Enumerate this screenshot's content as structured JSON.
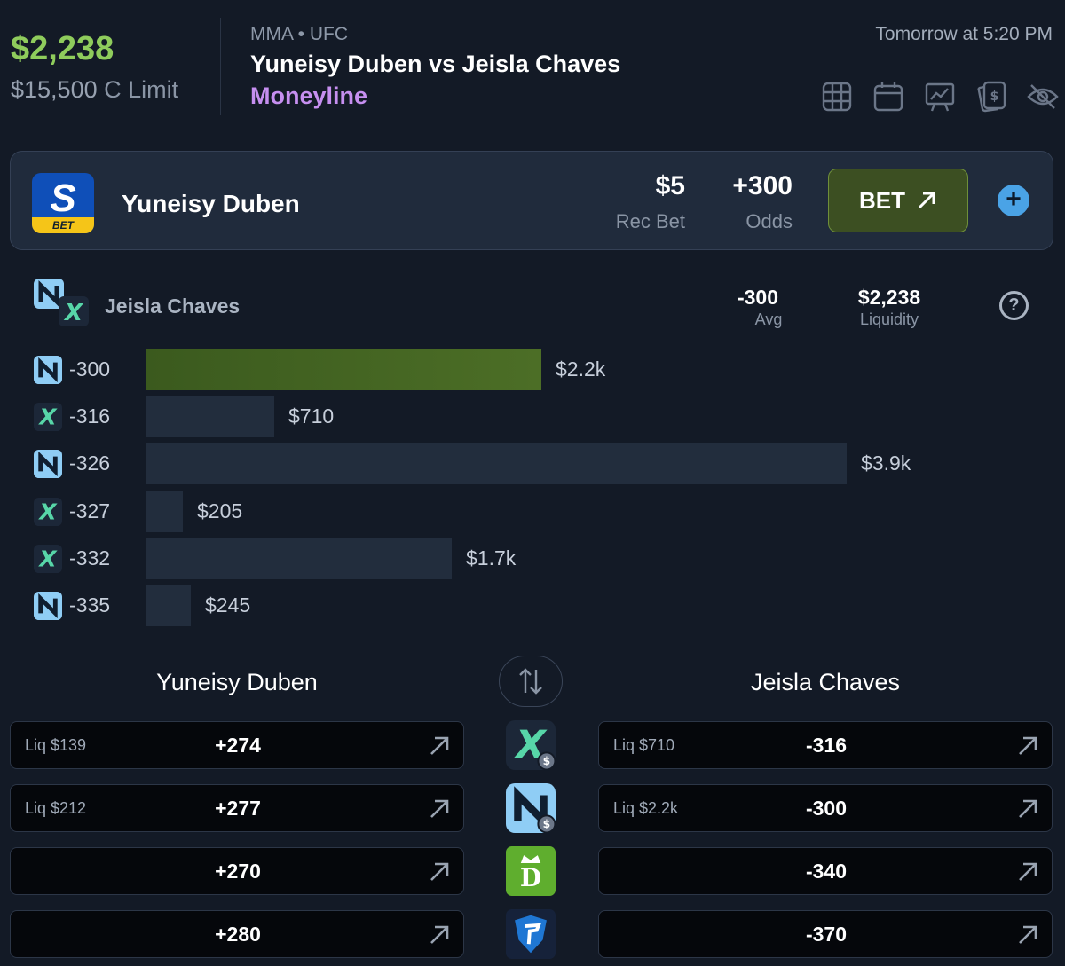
{
  "header": {
    "balance": "$2,238",
    "limit_value": "$15,500",
    "limit_label": "C Limit",
    "league": "MMA • UFC",
    "event": "Yuneisy Duben vs Jeisla Chaves",
    "market": "Moneyline",
    "time": "Tomorrow at 5:20 PM",
    "icons": [
      "grid-icon",
      "calendar-icon",
      "chart-icon",
      "cards-icon",
      "eye-off-icon"
    ]
  },
  "bet_card": {
    "book_logo_letter": "S",
    "book_logo_badge": "BET",
    "selection": "Yuneisy Duben",
    "rec_bet": "$5",
    "rec_bet_label": "Rec Bet",
    "odds": "+300",
    "odds_label": "Odds",
    "bet_button": "BET",
    "colors": {
      "bet_button_bg": "#3c4f22",
      "plus_button": "#4aa3e6"
    }
  },
  "liquidity": {
    "selection": "Jeisla Chaves",
    "avg": "-300",
    "avg_label": "Avg",
    "liquidity": "$2,238",
    "liquidity_label": "Liquidity",
    "help": "?",
    "ladder": [
      {
        "book": "novig",
        "odds": "-300",
        "amount": "$2.2k",
        "value": 2200
      },
      {
        "book": "prophetx",
        "odds": "-316",
        "amount": "$710",
        "value": 710
      },
      {
        "book": "novig",
        "odds": "-326",
        "amount": "$3.9k",
        "value": 3900
      },
      {
        "book": "prophetx",
        "odds": "-327",
        "amount": "$205",
        "value": 205
      },
      {
        "book": "prophetx",
        "odds": "-332",
        "amount": "$1.7k",
        "value": 1700
      },
      {
        "book": "novig",
        "odds": "-335",
        "amount": "$245",
        "value": 245
      }
    ]
  },
  "comparison": {
    "left_title": "Yuneisy Duben",
    "right_title": "Jeisla Chaves",
    "rows": [
      {
        "book": "prophetx",
        "left_liq": "Liq $139",
        "left_price": "+274",
        "right_liq": "Liq $710",
        "right_price": "-316"
      },
      {
        "book": "novig",
        "left_liq": "Liq $212",
        "left_price": "+277",
        "right_liq": "Liq $2.2k",
        "right_price": "-300"
      },
      {
        "book": "draftkings",
        "left_liq": "",
        "left_price": "+270",
        "right_liq": "",
        "right_price": "-340"
      },
      {
        "book": "fanduel",
        "left_liq": "",
        "left_price": "+280",
        "right_liq": "",
        "right_price": "-370"
      }
    ]
  }
}
